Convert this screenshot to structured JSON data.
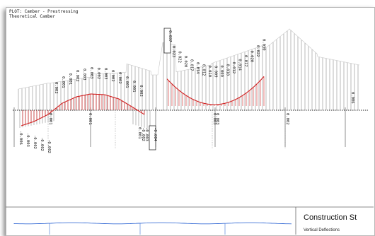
{
  "header": {
    "plot_title": "PLOT: Camber - Prestressing",
    "subtitle": "Theoretical Camber"
  },
  "title_block": {
    "title": "Construction St",
    "subtitle": "Vertical Deflections"
  },
  "colors": {
    "curve": "#d02020",
    "hatch": "#9a9a9a",
    "line": "#202020",
    "bottom_line": "#3b6fd6"
  },
  "chart_data": {
    "type": "line",
    "title": "PLOT: Camber - Prestressing",
    "subtitle": "Theoretical Camber",
    "note": "camber curve over span with station labels",
    "left_labels": [
      "-0.006",
      "-0.003",
      "-0.002",
      "-0.002",
      "-0.002",
      "0.002",
      "0.001",
      "0.001",
      "0.002",
      "0.003",
      "0.003",
      "0.002",
      "0.003",
      "0.002",
      "0.002",
      "0.001",
      "0.001",
      "0.002"
    ],
    "mid_labels": [
      "0.001",
      "-0.002",
      "-0.003",
      "-0.005",
      "-0.004"
    ],
    "right_labels": [
      "0.023",
      "0.022",
      "0.020",
      "0.017",
      "0.014",
      "0.012",
      "0.010",
      "0.009",
      "0.009",
      "0.010",
      "0.012",
      "0.014",
      "0.017",
      "0.020",
      "0.022",
      "0.030"
    ],
    "boxed_top": "0.037",
    "axis_labels": [
      "0.001",
      "0.001",
      "0.003",
      "0.003",
      "0.002",
      "0.006"
    ]
  }
}
